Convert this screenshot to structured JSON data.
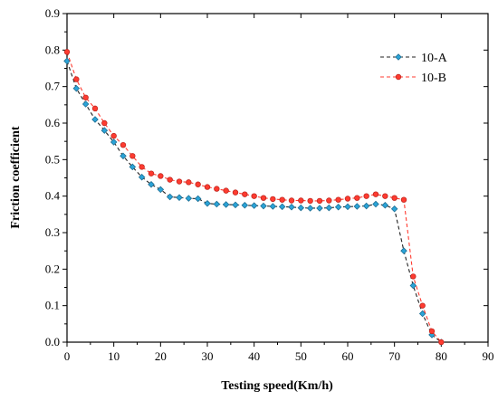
{
  "chart_data": {
    "type": "line",
    "xlabel": "Testing speed(Km/h)",
    "ylabel": "Friction coefficient",
    "xlim": [
      0,
      90
    ],
    "ylim": [
      0,
      0.9
    ],
    "xticks": [
      0,
      10,
      20,
      30,
      40,
      50,
      60,
      70,
      80,
      90
    ],
    "yticks": [
      0.0,
      0.1,
      0.2,
      0.3,
      0.4,
      0.5,
      0.6,
      0.7,
      0.8,
      0.9
    ],
    "xtick_labels": [
      "0",
      "10",
      "20",
      "30",
      "40",
      "50",
      "60",
      "70",
      "80",
      "90"
    ],
    "ytick_labels": [
      "0.0",
      "0.1",
      "0.2",
      "0.3",
      "0.4",
      "0.5",
      "0.6",
      "0.7",
      "0.8",
      "0.9"
    ],
    "grid": false,
    "legend_position": "top-right",
    "series": [
      {
        "name": "10-A",
        "color": "#2ba4d8",
        "line_style": "dashed",
        "marker": "diamond",
        "x": [
          0,
          2,
          4,
          6,
          8,
          10,
          12,
          14,
          16,
          18,
          20,
          22,
          24,
          26,
          28,
          30,
          32,
          34,
          36,
          38,
          40,
          42,
          44,
          46,
          48,
          50,
          52,
          54,
          56,
          58,
          60,
          62,
          64,
          66,
          68,
          70,
          72,
          74,
          76,
          78,
          80
        ],
        "y": [
          0.77,
          0.695,
          0.652,
          0.61,
          0.58,
          0.548,
          0.51,
          0.48,
          0.452,
          0.432,
          0.418,
          0.398,
          0.396,
          0.394,
          0.393,
          0.38,
          0.378,
          0.377,
          0.376,
          0.375,
          0.374,
          0.373,
          0.372,
          0.371,
          0.37,
          0.368,
          0.367,
          0.367,
          0.368,
          0.37,
          0.371,
          0.372,
          0.373,
          0.378,
          0.375,
          0.365,
          0.25,
          0.155,
          0.078,
          0.02,
          0.0
        ]
      },
      {
        "name": "10-B",
        "color": "#ff3b30",
        "line_style": "dashed",
        "marker": "circle",
        "x": [
          0,
          2,
          4,
          6,
          8,
          10,
          12,
          14,
          16,
          18,
          20,
          22,
          24,
          26,
          28,
          30,
          32,
          34,
          36,
          38,
          40,
          42,
          44,
          46,
          48,
          50,
          52,
          54,
          56,
          58,
          60,
          62,
          64,
          66,
          68,
          70,
          72,
          74,
          76,
          78,
          80
        ],
        "y": [
          0.795,
          0.72,
          0.67,
          0.64,
          0.6,
          0.565,
          0.54,
          0.51,
          0.48,
          0.462,
          0.455,
          0.445,
          0.44,
          0.438,
          0.432,
          0.425,
          0.42,
          0.415,
          0.41,
          0.405,
          0.4,
          0.395,
          0.392,
          0.39,
          0.388,
          0.388,
          0.387,
          0.387,
          0.388,
          0.39,
          0.393,
          0.395,
          0.4,
          0.405,
          0.4,
          0.395,
          0.39,
          0.18,
          0.1,
          0.03,
          0.0
        ]
      }
    ]
  }
}
